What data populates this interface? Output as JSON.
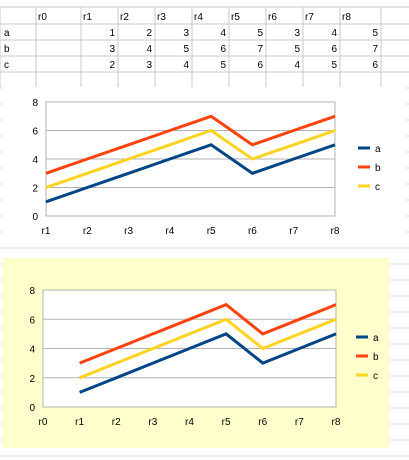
{
  "sheet": {
    "col_headers": [
      "r0",
      "r1",
      "r2",
      "r3",
      "r4",
      "r5",
      "r6",
      "r7",
      "r8"
    ],
    "rows": [
      {
        "label": "a",
        "values": [
          "",
          "1",
          "2",
          "3",
          "4",
          "5",
          "3",
          "4",
          "5"
        ]
      },
      {
        "label": "b",
        "values": [
          "",
          "3",
          "4",
          "5",
          "6",
          "7",
          "5",
          "6",
          "7"
        ]
      },
      {
        "label": "c",
        "values": [
          "",
          "2",
          "3",
          "4",
          "5",
          "6",
          "4",
          "5",
          "6"
        ]
      }
    ]
  },
  "chart_data": [
    {
      "type": "line",
      "background": "#ffffff",
      "categories": [
        "r1",
        "r2",
        "r3",
        "r4",
        "r5",
        "r6",
        "r7",
        "r8"
      ],
      "series": [
        {
          "name": "a",
          "color": "#004586",
          "values": [
            1,
            2,
            3,
            4,
            5,
            3,
            4,
            5
          ]
        },
        {
          "name": "b",
          "color": "#ff420e",
          "values": [
            3,
            4,
            5,
            6,
            7,
            5,
            6,
            7
          ]
        },
        {
          "name": "c",
          "color": "#ffd320",
          "values": [
            2,
            3,
            4,
            5,
            6,
            4,
            5,
            6
          ]
        }
      ],
      "ylim": [
        0,
        8
      ],
      "yticks": [
        0,
        2,
        4,
        6,
        8
      ],
      "grid": true,
      "legend": "right"
    },
    {
      "type": "line",
      "background": "#ffffcc",
      "categories": [
        "r0",
        "r1",
        "r2",
        "r3",
        "r4",
        "r5",
        "r6",
        "r7",
        "r8"
      ],
      "series": [
        {
          "name": "a",
          "color": "#004586",
          "values": [
            null,
            1,
            2,
            3,
            4,
            5,
            3,
            4,
            5
          ]
        },
        {
          "name": "b",
          "color": "#ff420e",
          "values": [
            null,
            3,
            4,
            5,
            6,
            7,
            5,
            6,
            7
          ]
        },
        {
          "name": "c",
          "color": "#ffd320",
          "values": [
            null,
            2,
            3,
            4,
            5,
            6,
            4,
            5,
            6
          ]
        }
      ],
      "ylim": [
        0,
        8
      ],
      "yticks": [
        0,
        2,
        4,
        6,
        8
      ],
      "grid": true,
      "legend": "right"
    }
  ]
}
